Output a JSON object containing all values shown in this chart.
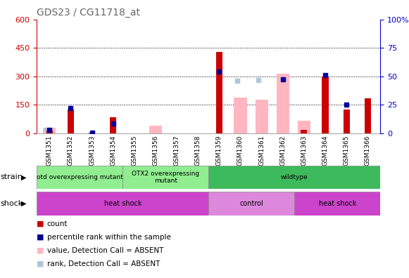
{
  "title": "GDS23 / CG11718_at",
  "samples": [
    "GSM1351",
    "GSM1352",
    "GSM1353",
    "GSM1354",
    "GSM1355",
    "GSM1356",
    "GSM1357",
    "GSM1358",
    "GSM1359",
    "GSM1360",
    "GSM1361",
    "GSM1362",
    "GSM1363",
    "GSM1364",
    "GSM1365",
    "GSM1366"
  ],
  "count": [
    15,
    125,
    5,
    85,
    0,
    0,
    0,
    0,
    430,
    0,
    0,
    0,
    20,
    300,
    125,
    185
  ],
  "percentile_rank_left": [
    20,
    132,
    5,
    52,
    null,
    null,
    null,
    null,
    325,
    null,
    null,
    285,
    null,
    308,
    150,
    null
  ],
  "absent_value": [
    30,
    null,
    null,
    null,
    null,
    40,
    null,
    null,
    null,
    188,
    178,
    315,
    65,
    null,
    null,
    null
  ],
  "absent_rank_left": [
    20,
    null,
    null,
    null,
    null,
    null,
    null,
    null,
    null,
    278,
    282,
    null,
    null,
    null,
    null,
    null
  ],
  "ylim_left": [
    0,
    600
  ],
  "ylim_right": [
    0,
    100
  ],
  "yticks_left": [
    0,
    150,
    300,
    450,
    600
  ],
  "yticks_right": [
    0,
    25,
    50,
    75,
    100
  ],
  "strain_groups": [
    {
      "label": "otd overexpressing mutant",
      "start": 0,
      "end": 4,
      "color": "#90ee90"
    },
    {
      "label": "OTX2 overexpressing\nmutant",
      "start": 4,
      "end": 8,
      "color": "#90ee90"
    },
    {
      "label": "wildtype",
      "start": 8,
      "end": 16,
      "color": "#3dba5c"
    }
  ],
  "shock_groups": [
    {
      "label": "heat shock",
      "start": 0,
      "end": 8,
      "color": "#cc44cc"
    },
    {
      "label": "control",
      "start": 8,
      "end": 12,
      "color": "#dd88dd"
    },
    {
      "label": "heat shock",
      "start": 12,
      "end": 16,
      "color": "#cc44cc"
    }
  ],
  "legend_items": [
    {
      "color": "#cc0000",
      "label": "count"
    },
    {
      "color": "#000099",
      "label": "percentile rank within the sample"
    },
    {
      "color": "#ffb6c1",
      "label": "value, Detection Call = ABSENT"
    },
    {
      "color": "#b0c4de",
      "label": "rank, Detection Call = ABSENT"
    }
  ],
  "left_axis_color": "#cc0000",
  "right_axis_color": "#0000cc",
  "title_color": "#666666"
}
